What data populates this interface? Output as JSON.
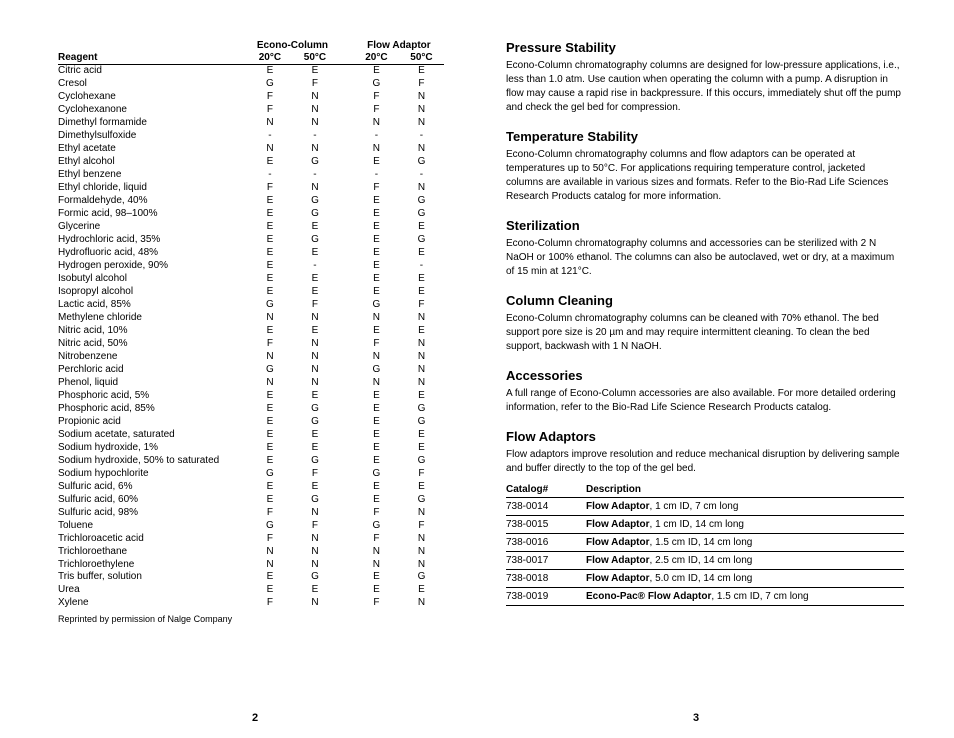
{
  "left": {
    "header_group1": "Econo-Column",
    "header_group2": "Flow Adaptor",
    "header_reagent": "Reagent",
    "header_20": "20°C",
    "header_50": "50°C",
    "rows": [
      {
        "r": "Citric acid",
        "a": "E",
        "b": "E",
        "c": "E",
        "d": "E"
      },
      {
        "r": "Cresol",
        "a": "G",
        "b": "F",
        "c": "G",
        "d": "F"
      },
      {
        "r": "Cyclohexane",
        "a": "F",
        "b": "N",
        "c": "F",
        "d": "N"
      },
      {
        "r": "Cyclohexanone",
        "a": "F",
        "b": "N",
        "c": "F",
        "d": "N"
      },
      {
        "r": "Dimethyl formamide",
        "a": "N",
        "b": "N",
        "c": "N",
        "d": "N"
      },
      {
        "r": "Dimethylsulfoxide",
        "a": "-",
        "b": "-",
        "c": "-",
        "d": "-"
      },
      {
        "r": "Ethyl acetate",
        "a": "N",
        "b": "N",
        "c": "N",
        "d": "N"
      },
      {
        "r": "Ethyl alcohol",
        "a": "E",
        "b": "G",
        "c": "E",
        "d": "G"
      },
      {
        "r": "Ethyl benzene",
        "a": "-",
        "b": "-",
        "c": "-",
        "d": "-"
      },
      {
        "r": "Ethyl chloride, liquid",
        "a": "F",
        "b": "N",
        "c": "F",
        "d": "N"
      },
      {
        "r": "Formaldehyde, 40%",
        "a": "E",
        "b": "G",
        "c": "E",
        "d": "G"
      },
      {
        "r": "Formic acid, 98–100%",
        "a": "E",
        "b": "G",
        "c": "E",
        "d": "G"
      },
      {
        "r": "Glycerine",
        "a": "E",
        "b": "E",
        "c": "E",
        "d": "E"
      },
      {
        "r": "Hydrochloric acid, 35%",
        "a": "E",
        "b": "G",
        "c": "E",
        "d": "G"
      },
      {
        "r": "Hydrofluoric acid, 48%",
        "a": "E",
        "b": "E",
        "c": "E",
        "d": "E"
      },
      {
        "r": "Hydrogen peroxide, 90%",
        "a": "E",
        "b": "-",
        "c": "E",
        "d": "-"
      },
      {
        "r": "Isobutyl alcohol",
        "a": "E",
        "b": "E",
        "c": "E",
        "d": "E"
      },
      {
        "r": "Isopropyl alcohol",
        "a": "E",
        "b": "E",
        "c": "E",
        "d": "E"
      },
      {
        "r": "Lactic acid, 85%",
        "a": "G",
        "b": "F",
        "c": "G",
        "d": "F"
      },
      {
        "r": "Methylene chloride",
        "a": "N",
        "b": "N",
        "c": "N",
        "d": "N"
      },
      {
        "r": "Nitric acid, 10%",
        "a": "E",
        "b": "E",
        "c": "E",
        "d": "E"
      },
      {
        "r": "Nitric acid, 50%",
        "a": "F",
        "b": "N",
        "c": "F",
        "d": "N"
      },
      {
        "r": "Nitrobenzene",
        "a": "N",
        "b": "N",
        "c": "N",
        "d": "N"
      },
      {
        "r": "Perchloric acid",
        "a": "G",
        "b": "N",
        "c": "G",
        "d": "N"
      },
      {
        "r": "Phenol, liquid",
        "a": "N",
        "b": "N",
        "c": "N",
        "d": "N"
      },
      {
        "r": "Phosphoric acid, 5%",
        "a": "E",
        "b": "E",
        "c": "E",
        "d": "E"
      },
      {
        "r": "Phosphoric acid, 85%",
        "a": "E",
        "b": "G",
        "c": "E",
        "d": "G"
      },
      {
        "r": "Propionic acid",
        "a": "E",
        "b": "G",
        "c": "E",
        "d": "G"
      },
      {
        "r": "Sodium acetate, saturated",
        "a": "E",
        "b": "E",
        "c": "E",
        "d": "E"
      },
      {
        "r": "Sodium hydroxide, 1%",
        "a": "E",
        "b": "E",
        "c": "E",
        "d": "E"
      },
      {
        "r": "Sodium hydroxide, 50% to saturated",
        "a": "E",
        "b": "G",
        "c": "E",
        "d": "G"
      },
      {
        "r": "Sodium hypochlorite",
        "a": "G",
        "b": "F",
        "c": "G",
        "d": "F"
      },
      {
        "r": "Sulfuric acid, 6%",
        "a": "E",
        "b": "E",
        "c": "E",
        "d": "E"
      },
      {
        "r": "Sulfuric acid, 60%",
        "a": "E",
        "b": "G",
        "c": "E",
        "d": "G"
      },
      {
        "r": "Sulfuric acid, 98%",
        "a": "F",
        "b": "N",
        "c": "F",
        "d": "N"
      },
      {
        "r": "Toluene",
        "a": "G",
        "b": "F",
        "c": "G",
        "d": "F"
      },
      {
        "r": "Trichloroacetic acid",
        "a": "F",
        "b": "N",
        "c": "F",
        "d": "N"
      },
      {
        "r": "Trichloroethane",
        "a": "N",
        "b": "N",
        "c": "N",
        "d": "N"
      },
      {
        "r": "Trichloroethylene",
        "a": "N",
        "b": "N",
        "c": "N",
        "d": "N"
      },
      {
        "r": "Tris buffer, solution",
        "a": "E",
        "b": "G",
        "c": "E",
        "d": "G"
      },
      {
        "r": "Urea",
        "a": "E",
        "b": "E",
        "c": "E",
        "d": "E"
      },
      {
        "r": "Xylene",
        "a": "F",
        "b": "N",
        "c": "F",
        "d": "N"
      }
    ],
    "footnote": "Reprinted by permission of Nalge Company",
    "pagenum": "2"
  },
  "right": {
    "sections": [
      {
        "h": "Pressure Stability",
        "p": "Econo-Column chromatography columns are designed for low-pressure applications, i.e., less than 1.0 atm. Use caution when operating the column with a pump. A disruption in flow may cause a rapid rise in backpressure. If this occurs, immediately shut off the pump and check the gel bed for compression."
      },
      {
        "h": "Temperature Stability",
        "p": "Econo-Column chromatography columns and flow adaptors can be operated at temperatures up to 50°C. For applications requiring temperature control, jacketed columns are available in various sizes and formats. Refer to the Bio-Rad Life Sciences Research Products catalog for more information."
      },
      {
        "h": "Sterilization",
        "p": "Econo-Column chromatography columns and accessories can be sterilized with 2 N NaOH or 100% ethanol. The columns can also be autoclaved, wet or dry, at a maximum of 15 min at 121°C."
      },
      {
        "h": "Column Cleaning",
        "p": "Econo-Column chromatography columns can be cleaned with 70% ethanol. The bed support pore size is 20 µm and may require intermittent cleaning. To clean the bed support, backwash with 1 N NaOH."
      },
      {
        "h": "Accessories",
        "p": "A full range of Econo-Column accessories are also available. For more detailed ordering information, refer to the Bio-Rad Life Science Research Products catalog."
      },
      {
        "h": "Flow Adaptors",
        "p": "Flow adaptors improve resolution and reduce mechanical disruption by delivering sample and buffer directly to the top of the gel bed."
      }
    ],
    "catalog_headers": {
      "c": "Catalog#",
      "d": "Description"
    },
    "catalog": [
      {
        "c": "738-0014",
        "b": "Flow Adaptor",
        "t": ", 1 cm ID, 7 cm long"
      },
      {
        "c": "738-0015",
        "b": "Flow Adaptor",
        "t": ", 1 cm ID, 14 cm long"
      },
      {
        "c": "738-0016",
        "b": "Flow Adaptor",
        "t": ", 1.5 cm ID, 14 cm long"
      },
      {
        "c": "738-0017",
        "b": "Flow Adaptor",
        "t": ", 2.5 cm ID, 14 cm long"
      },
      {
        "c": "738-0018",
        "b": "Flow Adaptor",
        "t": ", 5.0 cm ID, 14 cm long"
      },
      {
        "c": "738-0019",
        "b": "Econo-Pac® Flow Adaptor",
        "t": ", 1.5 cm ID, 7 cm long"
      }
    ],
    "pagenum": "3"
  }
}
